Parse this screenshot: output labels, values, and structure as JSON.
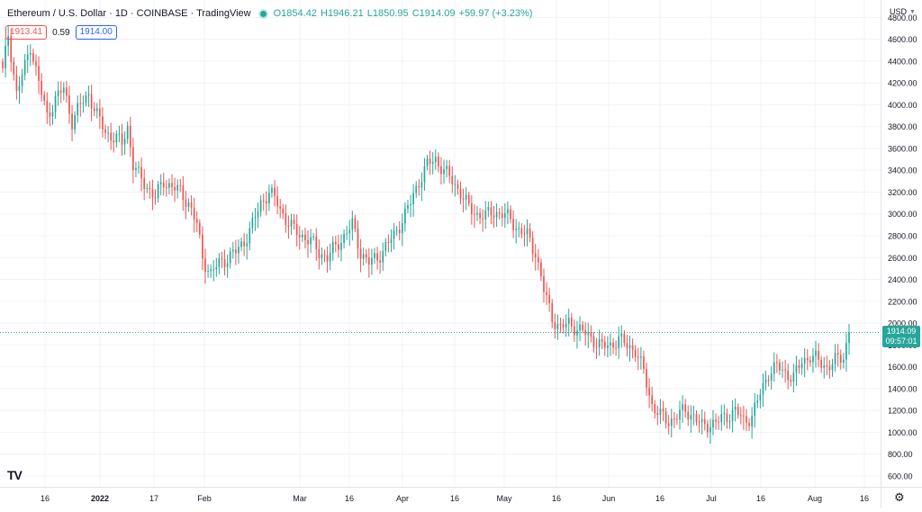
{
  "symbol": {
    "title": "Ethereum / U.S. Dollar · 1D · COINBASE · TradingView",
    "ohlc": {
      "o": "O1854.42",
      "h": "H1946.21",
      "l": "L1850.95",
      "c": "C1914.09",
      "chg": "+59.97 (+3.23%)"
    },
    "bid": "1913.41",
    "spread": "0.59",
    "ask": "1914.00"
  },
  "price_scale": {
    "currency": "USD",
    "last_price": "1914.09",
    "countdown": "09:57:01"
  },
  "colors": {
    "up": "#26a69a",
    "down": "#ef5350",
    "grid": "#f0f3fa",
    "text": "#131722"
  },
  "chart_data": {
    "type": "candlestick",
    "ylim": [
      500,
      4960
    ],
    "y_ticks": [
      600,
      800,
      1000,
      1200,
      1400,
      1600,
      1800,
      2000,
      2200,
      2400,
      2600,
      2800,
      3000,
      3200,
      3400,
      3600,
      3800,
      4000,
      4200,
      4400,
      4600,
      4800
    ],
    "y_tick_labels": [
      "600.00",
      "800.00",
      "1000.00",
      "1200.00",
      "1400.00",
      "1600.00",
      "1800.00",
      "2000.00",
      "2200.00",
      "2400.00",
      "2600.00",
      "2800.00",
      "3000.00",
      "3200.00",
      "3400.00",
      "3600.00",
      "3800.00",
      "4000.00",
      "4200.00",
      "4400.00",
      "4600.00",
      "4800.00"
    ],
    "x_ticks": [
      {
        "label": "16",
        "bold": false
      },
      {
        "label": "2022",
        "bold": true
      },
      {
        "label": "17",
        "bold": false
      },
      {
        "label": "Feb",
        "bold": false
      },
      {
        "label": "Mar",
        "bold": false
      },
      {
        "label": "16",
        "bold": false
      },
      {
        "label": "Apr",
        "bold": false
      },
      {
        "label": "16",
        "bold": false
      },
      {
        "label": "May",
        "bold": false
      },
      {
        "label": "16",
        "bold": false
      },
      {
        "label": "Jun",
        "bold": false
      },
      {
        "label": "16",
        "bold": false
      },
      {
        "label": "Jul",
        "bold": false
      },
      {
        "label": "16",
        "bold": false
      },
      {
        "label": "Aug",
        "bold": false
      },
      {
        "label": "16",
        "bold": false
      }
    ],
    "last_price": 1914.09,
    "close_path": [
      [
        0,
        4300
      ],
      [
        2,
        4650
      ],
      [
        5,
        4100
      ],
      [
        8,
        4350
      ],
      [
        10,
        4550
      ],
      [
        13,
        4200
      ],
      [
        16,
        3900
      ],
      [
        19,
        4050
      ],
      [
        22,
        4150
      ],
      [
        25,
        3850
      ],
      [
        28,
        4000
      ],
      [
        31,
        4100
      ],
      [
        34,
        3900
      ],
      [
        37,
        3750
      ],
      [
        40,
        3700
      ],
      [
        43,
        3650
      ],
      [
        45,
        3800
      ],
      [
        47,
        3450
      ],
      [
        49,
        3350
      ],
      [
        52,
        3250
      ],
      [
        55,
        3150
      ],
      [
        58,
        3300
      ],
      [
        61,
        3250
      ],
      [
        64,
        3200
      ],
      [
        67,
        3100
      ],
      [
        70,
        2900
      ],
      [
        72,
        2600
      ],
      [
        75,
        2450
      ],
      [
        78,
        2550
      ],
      [
        81,
        2600
      ],
      [
        84,
        2650
      ],
      [
        87,
        2750
      ],
      [
        90,
        2900
      ],
      [
        93,
        3100
      ],
      [
        96,
        3200
      ],
      [
        99,
        3100
      ],
      [
        102,
        2950
      ],
      [
        105,
        2850
      ],
      [
        108,
        2800
      ],
      [
        111,
        2750
      ],
      [
        114,
        2650
      ],
      [
        117,
        2600
      ],
      [
        120,
        2700
      ],
      [
        123,
        2800
      ],
      [
        126,
        2900
      ],
      [
        129,
        2650
      ],
      [
        132,
        2550
      ],
      [
        135,
        2600
      ],
      [
        138,
        2700
      ],
      [
        141,
        2800
      ],
      [
        144,
        2950
      ],
      [
        147,
        3100
      ],
      [
        150,
        3300
      ],
      [
        153,
        3450
      ],
      [
        156,
        3500
      ],
      [
        159,
        3400
      ],
      [
        162,
        3300
      ],
      [
        165,
        3200
      ],
      [
        168,
        3050
      ],
      [
        171,
        3000
      ],
      [
        174,
        2980
      ],
      [
        177,
        3020
      ],
      [
        180,
        3000
      ],
      [
        183,
        2950
      ],
      [
        186,
        2850
      ],
      [
        189,
        2800
      ],
      [
        192,
        2650
      ],
      [
        195,
        2300
      ],
      [
        198,
        2050
      ],
      [
        201,
        1950
      ],
      [
        204,
        2000
      ],
      [
        207,
        1950
      ],
      [
        210,
        1900
      ],
      [
        213,
        1850
      ],
      [
        216,
        1780
      ],
      [
        219,
        1800
      ],
      [
        222,
        1850
      ],
      [
        225,
        1800
      ],
      [
        228,
        1750
      ],
      [
        231,
        1550
      ],
      [
        234,
        1250
      ],
      [
        237,
        1150
      ],
      [
        240,
        1100
      ],
      [
        243,
        1150
      ],
      [
        246,
        1200
      ],
      [
        249,
        1150
      ],
      [
        252,
        1050
      ],
      [
        255,
        1080
      ],
      [
        258,
        1100
      ],
      [
        261,
        1150
      ],
      [
        264,
        1200
      ],
      [
        267,
        1100
      ],
      [
        270,
        1150
      ],
      [
        273,
        1350
      ],
      [
        276,
        1550
      ],
      [
        279,
        1600
      ],
      [
        282,
        1550
      ],
      [
        285,
        1500
      ],
      [
        288,
        1650
      ],
      [
        291,
        1700
      ],
      [
        294,
        1650
      ],
      [
        297,
        1600
      ],
      [
        300,
        1650
      ],
      [
        303,
        1700
      ],
      [
        305,
        1914
      ]
    ]
  }
}
